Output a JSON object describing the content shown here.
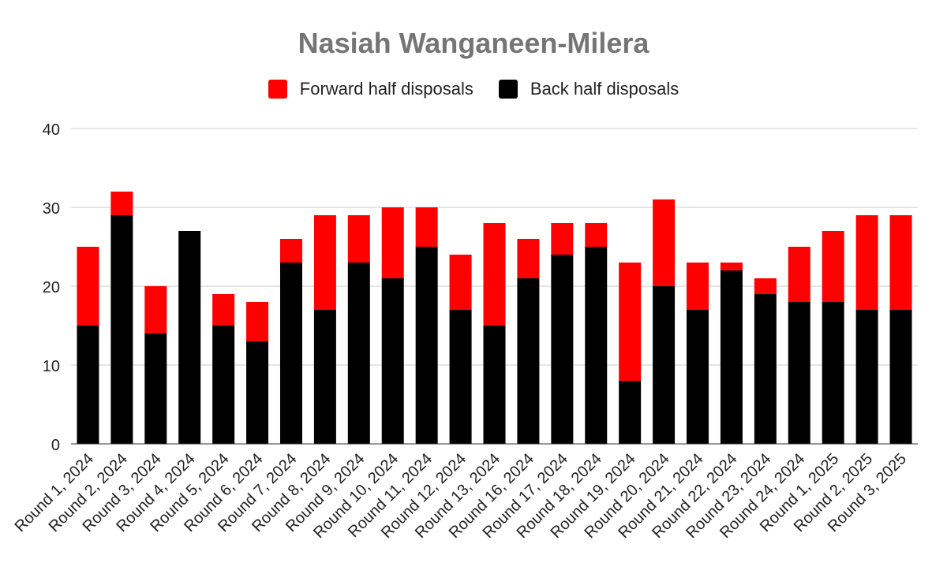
{
  "chart_data": {
    "type": "bar",
    "stacked": true,
    "title": "Nasiah Wanganeen-Milera",
    "xlabel": "",
    "ylabel": "",
    "ylim": [
      0,
      40
    ],
    "yticks": [
      0,
      10,
      20,
      30,
      40
    ],
    "grid": true,
    "legend_position": "top",
    "categories": [
      "Round 1, 2024",
      "Round 2, 2024",
      "Round 3, 2024",
      "Round 4, 2024",
      "Round 5, 2024",
      "Round 6, 2024",
      "Round 7, 2024",
      "Round 8, 2024",
      "Round 9, 2024",
      "Round 10, 2024",
      "Round 11, 2024",
      "Round 12, 2024",
      "Round 13, 2024",
      "Round 16, 2024",
      "Round 17, 2024",
      "Round 18, 2024",
      "Round 19, 2024",
      "Round 20, 2024",
      "Round 21, 2024",
      "Round 22, 2024",
      "Round 23, 2024",
      "Round 24, 2024",
      "Round 1, 2025",
      "Round 2, 2025",
      "Round 3, 2025"
    ],
    "series": [
      {
        "name": "Forward half disposals",
        "color": "#ff0000",
        "values": [
          10,
          3,
          6,
          0,
          4,
          5,
          3,
          12,
          6,
          9,
          5,
          7,
          13,
          5,
          4,
          3,
          15,
          11,
          6,
          1,
          2,
          7,
          9,
          12,
          12
        ]
      },
      {
        "name": "Back half disposals",
        "color": "#000000",
        "values": [
          15,
          29,
          14,
          27,
          15,
          13,
          23,
          17,
          23,
          21,
          25,
          17,
          15,
          21,
          24,
          25,
          8,
          20,
          17,
          22,
          19,
          18,
          18,
          17,
          17
        ]
      }
    ]
  }
}
